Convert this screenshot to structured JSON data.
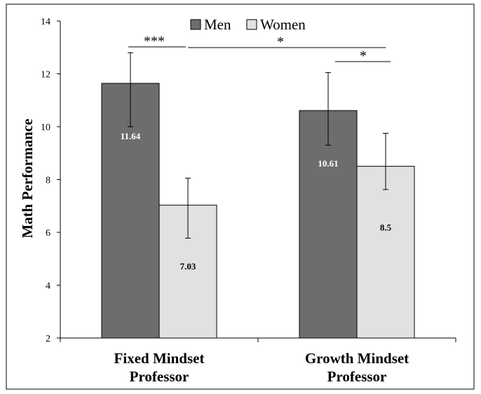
{
  "chart_data": {
    "type": "bar",
    "categories": [
      "Fixed Mindset Professor",
      "Growth Mindset Professor"
    ],
    "category_lines": [
      [
        "Fixed Mindset",
        "Professor"
      ],
      [
        "Growth Mindset",
        "Professor"
      ]
    ],
    "series": [
      {
        "name": "Men",
        "values": [
          11.64,
          10.61
        ],
        "labels": [
          "11.64",
          "10.61"
        ],
        "error_low": [
          10.0,
          9.3
        ],
        "error_high": [
          12.8,
          12.05
        ],
        "color": "#6d6d6d"
      },
      {
        "name": "Women",
        "values": [
          7.03,
          8.5
        ],
        "labels": [
          "7.03",
          "8.5"
        ],
        "error_low": [
          5.78,
          7.62
        ],
        "error_high": [
          8.05,
          9.75
        ],
        "color": "#e1e1e1"
      }
    ],
    "ylabel": "Math Performance",
    "ylim": [
      2,
      14
    ],
    "yticks": [
      2,
      4,
      6,
      8,
      10,
      12,
      14
    ],
    "legend_position": "top",
    "annotations": [
      {
        "text": "***",
        "between": [
          [
            0,
            0
          ],
          [
            0,
            1
          ]
        ]
      },
      {
        "text": "*",
        "between": [
          [
            0,
            1
          ],
          [
            1,
            1
          ]
        ]
      },
      {
        "text": "*",
        "between": [
          [
            1,
            0
          ],
          [
            1,
            1
          ]
        ]
      }
    ]
  }
}
